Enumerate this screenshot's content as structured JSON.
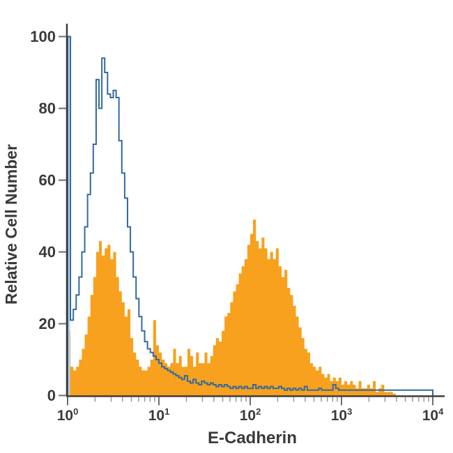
{
  "figure": {
    "x_axis": {
      "label": "E-Cadherin",
      "scale": "log10",
      "tick_mantissa": "10",
      "tick_exponents": [
        "0",
        "1",
        "2",
        "3",
        "4"
      ]
    },
    "y_axis": {
      "label": "Relative Cell Number",
      "tick_labels": [
        "0",
        "20",
        "40",
        "60",
        "80",
        "100"
      ]
    }
  },
  "colors": {
    "filled_histogram": "#F7A11E",
    "open_histogram_line": "#336A9E",
    "open_histogram_edge_fill": "#B9D3E8",
    "axis_line": "#3D3D3D",
    "major_tick": "#6E6E6E",
    "minor_tick": "#9A9A9A",
    "text": "#3A3A3A"
  },
  "chart_data": {
    "type": "area",
    "subtype": "flow-cytometry-histogram-overlay",
    "title": "",
    "xlabel": "E-Cadherin",
    "ylabel": "Relative Cell Number",
    "x_scale": "log10",
    "x_range": [
      1,
      10000
    ],
    "ylim": [
      0,
      100
    ],
    "y_ticks": [
      0,
      20,
      40,
      60,
      80,
      100
    ],
    "bins_per_decade": 32,
    "legend": "none",
    "grid": false,
    "series": [
      {
        "name": "control-open-histogram",
        "style": "open_outline",
        "color": "#336A9E",
        "peak_note": "edge spike 100 at x=1; main peak ~94 near x=2.5; low tail ~1.5 to 10^4",
        "values": [
          100,
          21,
          24,
          28,
          33,
          40,
          47,
          56,
          62,
          70,
          88,
          80,
          94,
          90,
          84,
          83,
          85,
          83,
          71,
          62,
          55,
          47,
          40,
          33,
          27,
          22,
          18,
          15,
          13,
          12,
          11,
          10,
          9,
          8,
          7.5,
          7,
          6.5,
          6,
          5.5,
          5,
          4.5,
          5.5,
          4,
          3.5,
          4.5,
          3.5,
          3,
          4,
          3.5,
          3,
          3.5,
          3,
          2.5,
          3,
          2.5,
          3,
          2.5,
          2,
          2.5,
          2,
          2.5,
          2,
          2.5,
          2,
          2,
          3,
          2,
          2.5,
          2,
          2.5,
          2,
          2.5,
          2,
          2,
          2.5,
          2,
          1.5,
          2,
          1.5,
          2,
          1.5,
          2,
          1.5,
          2.5,
          1.5,
          1.5,
          1.5,
          1.5,
          2,
          1.5,
          1.5,
          1.5,
          1.5,
          3,
          2,
          1.5,
          1.5,
          1.5,
          1.5,
          1.5,
          1.5,
          1.5,
          1.5,
          1.5,
          1.5,
          1.5,
          1.5,
          1.5,
          1.5,
          1.5,
          1.5,
          1.5,
          1.5,
          1.5,
          1.5,
          1.5,
          1.5,
          1.5,
          1.5,
          1.5,
          1.5,
          1.5,
          1.5,
          1.5,
          1.5,
          1.5,
          1.5,
          1.5
        ]
      },
      {
        "name": "stained-filled-histogram",
        "style": "filled",
        "color": "#F7A11E",
        "peak_note": "bimodal: first peak ~43 near x=3; valley ~8 near x=15; second peak ~49 near x=110; tail ends ~x=3700",
        "values": [
          18,
          8,
          7,
          8,
          10,
          13,
          17,
          22,
          28,
          33,
          40,
          43,
          39,
          41,
          42,
          38,
          40,
          33,
          29,
          26,
          22,
          24,
          16,
          12,
          10,
          8,
          7,
          7,
          8,
          10,
          21,
          14,
          12,
          10,
          9,
          8,
          9,
          13,
          9,
          11,
          8,
          8,
          13,
          11,
          8,
          12,
          9,
          9,
          12,
          9,
          11,
          14,
          16,
          15,
          18,
          22,
          23,
          26,
          29,
          31,
          34,
          36,
          38,
          42,
          45,
          49,
          43,
          41,
          44,
          41,
          38,
          40,
          38,
          41,
          36,
          33,
          35,
          30,
          28,
          25,
          22,
          19,
          16,
          13,
          12,
          9,
          8,
          7,
          8,
          6,
          5,
          6,
          4,
          5,
          4,
          5,
          3,
          4,
          3,
          4,
          3,
          2,
          4,
          2,
          2,
          3,
          2,
          4,
          1,
          2,
          3,
          1,
          1,
          1,
          0.5,
          0,
          0,
          0,
          0,
          0,
          0,
          0,
          0,
          0,
          0,
          0,
          0,
          0
        ]
      }
    ]
  }
}
